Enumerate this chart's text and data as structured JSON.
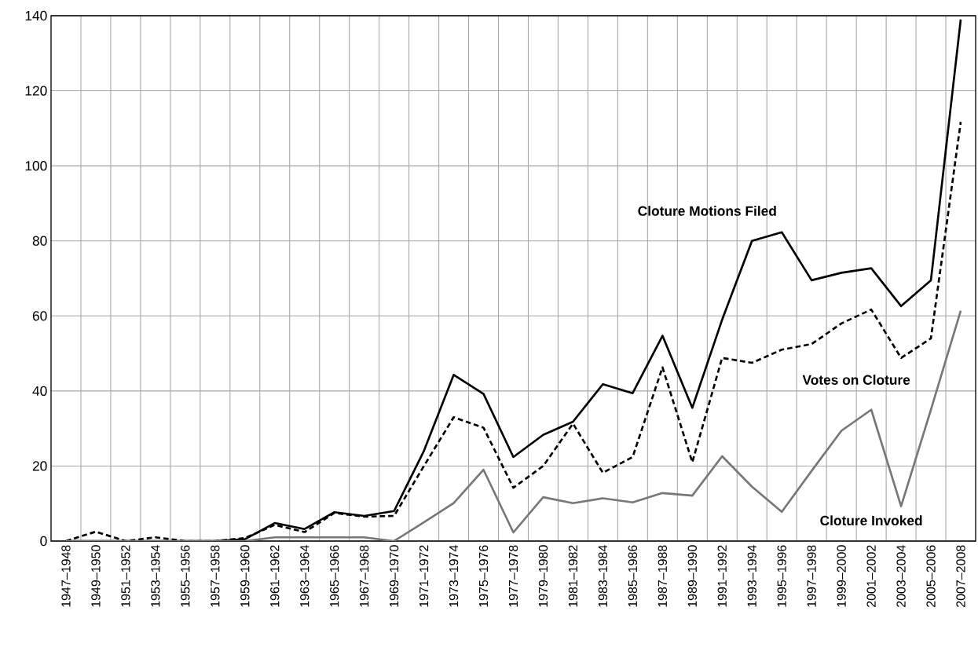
{
  "chart_data": {
    "type": "line",
    "categories": [
      "1947–1948",
      "1949–1950",
      "1951–1952",
      "1953–1954",
      "1955–1956",
      "1957–1958",
      "1959–1960",
      "1961–1962",
      "1963–1964",
      "1965–1966",
      "1967–1968",
      "1969–1970",
      "1971–1972",
      "1973–1974",
      "1975–1976",
      "1977–1978",
      "1979–1980",
      "1981–1982",
      "1983–1984",
      "1985–1986",
      "1987–1988",
      "1989–1990",
      "1991–1992",
      "1993–1994",
      "1995–1996",
      "1997–1998",
      "1999–2000",
      "2001–2002",
      "2003–2004",
      "2005–2006",
      "2007–2008"
    ],
    "series": [
      {
        "name": "Cloture Motions Filed",
        "color": "#000000",
        "line_style": "solid",
        "values": [
          0,
          0,
          0,
          0,
          0,
          0,
          0.5,
          4.8,
          3.2,
          7.7,
          6.7,
          8,
          24,
          44.3,
          39.2,
          22.4,
          28.3,
          31.8,
          41.8,
          39.4,
          54.7,
          35.5,
          59,
          80,
          82.3,
          69.5,
          71.5,
          72.7,
          62.6,
          69.5,
          139
        ]
      },
      {
        "name": "Votes on Cloture",
        "color": "#000000",
        "line_style": "dashed",
        "values": [
          0,
          2.5,
          0,
          1,
          0,
          0,
          0.8,
          4.3,
          2.4,
          7.5,
          6.5,
          6.7,
          20,
          33,
          30.2,
          14.2,
          20,
          31.3,
          18.2,
          22.4,
          46.3,
          21,
          48.8,
          47.5,
          51,
          52.5,
          58,
          61.7,
          48.8,
          54,
          111.7
        ]
      },
      {
        "name": "Cloture Invoked",
        "color": "#777777",
        "line_style": "solid",
        "values": [
          0,
          0,
          0,
          0,
          0,
          0,
          0,
          1,
          1,
          1,
          1,
          0,
          5,
          10.1,
          19,
          2.3,
          11.7,
          10.1,
          11.4,
          10.3,
          12.8,
          12.1,
          22.6,
          14.5,
          7.8,
          18.7,
          29.4,
          35,
          9.3,
          35,
          61.4
        ]
      }
    ],
    "ylim": [
      0,
      140
    ],
    "yticks": [
      0,
      20,
      40,
      60,
      80,
      100,
      120,
      140
    ],
    "grid": true
  }
}
